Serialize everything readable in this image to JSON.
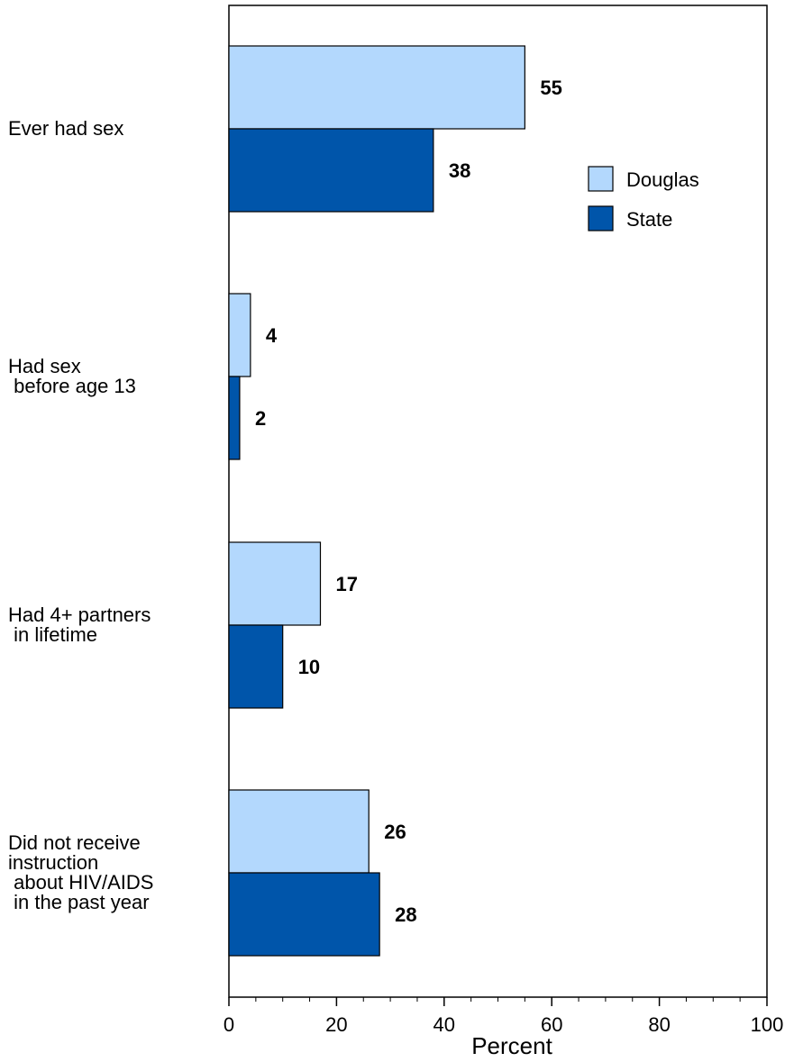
{
  "chart_data": {
    "type": "bar",
    "orientation": "horizontal",
    "categories": [
      [
        "Ever had sex"
      ],
      [
        "Had sex",
        " before age 13"
      ],
      [
        "Had 4+ partners",
        " in lifetime"
      ],
      [
        "Did not receive",
        "instruction",
        " about HIV/AIDS",
        "  in the past year"
      ]
    ],
    "series": [
      {
        "name": "Douglas",
        "color": "#b3d8fd",
        "values": [
          55,
          4,
          17,
          26
        ]
      },
      {
        "name": "State",
        "color": "#0055aa",
        "values": [
          38,
          2,
          10,
          28
        ]
      }
    ],
    "xlabel": "Percent",
    "xlim": [
      0,
      100
    ],
    "xticks": [
      "0",
      "20",
      "40",
      "60",
      "80",
      "100"
    ],
    "grid": false,
    "legend_position": "top-right"
  }
}
